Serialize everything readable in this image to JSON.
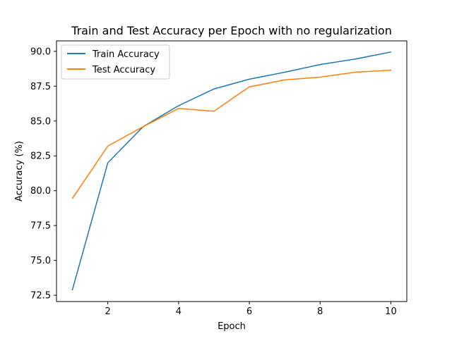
{
  "chart_data": {
    "type": "line",
    "title": "Train and Test Accuracy per Epoch with no regularization",
    "xlabel": "Epoch",
    "ylabel": "Accuracy (%)",
    "x": [
      1,
      2,
      3,
      4,
      5,
      6,
      7,
      8,
      9,
      10
    ],
    "xlim": [
      0.55,
      10.45
    ],
    "ylim": [
      72.05,
      90.75
    ],
    "xticks": [
      2,
      4,
      6,
      8,
      10
    ],
    "xtick_labels": [
      "2",
      "4",
      "6",
      "8",
      "10"
    ],
    "yticks": [
      72.5,
      75.0,
      77.5,
      80.0,
      82.5,
      85.0,
      87.5,
      90.0
    ],
    "ytick_labels": [
      "72.5",
      "75.0",
      "77.5",
      "80.0",
      "82.5",
      "85.0",
      "87.5",
      "90.0"
    ],
    "grid": false,
    "legend_position": "top-left",
    "series": [
      {
        "name": "Train Accuracy",
        "color": "#1f77b4",
        "values": [
          72.9,
          82.0,
          84.6,
          86.1,
          87.3,
          88.0,
          88.5,
          89.05,
          89.45,
          89.95
        ]
      },
      {
        "name": "Test Accuracy",
        "color": "#ff7f0e",
        "values": [
          79.45,
          83.2,
          84.6,
          85.9,
          85.7,
          87.45,
          87.95,
          88.15,
          88.5,
          88.65
        ]
      }
    ]
  }
}
